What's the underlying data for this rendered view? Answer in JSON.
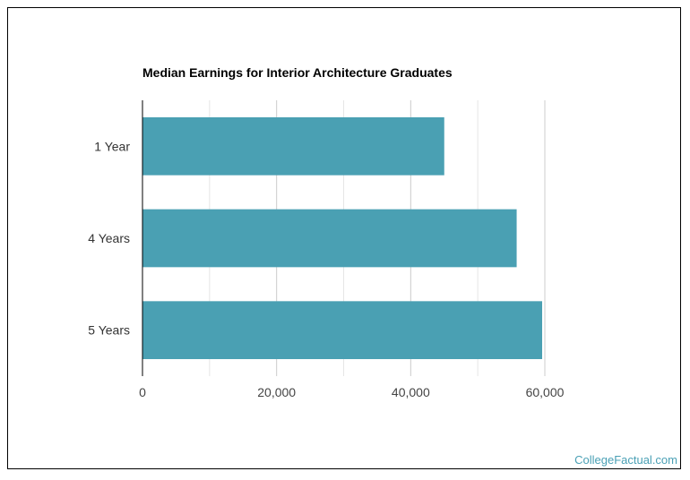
{
  "chart_data": {
    "type": "bar",
    "orientation": "horizontal",
    "title": "Median Earnings for Interior Architecture Graduates",
    "categories": [
      "1 Year",
      "4 Years",
      "5 Years"
    ],
    "values": [
      45000,
      55800,
      59600
    ],
    "xlim": [
      0,
      60000
    ],
    "xticks": [
      0,
      20000,
      40000,
      60000
    ],
    "xtick_labels": [
      "0",
      "20,000",
      "40,000",
      "60,000"
    ],
    "grid": true,
    "bar_color": "#4aa0b3",
    "legend": null
  },
  "credit": "CollegeFactual.com"
}
